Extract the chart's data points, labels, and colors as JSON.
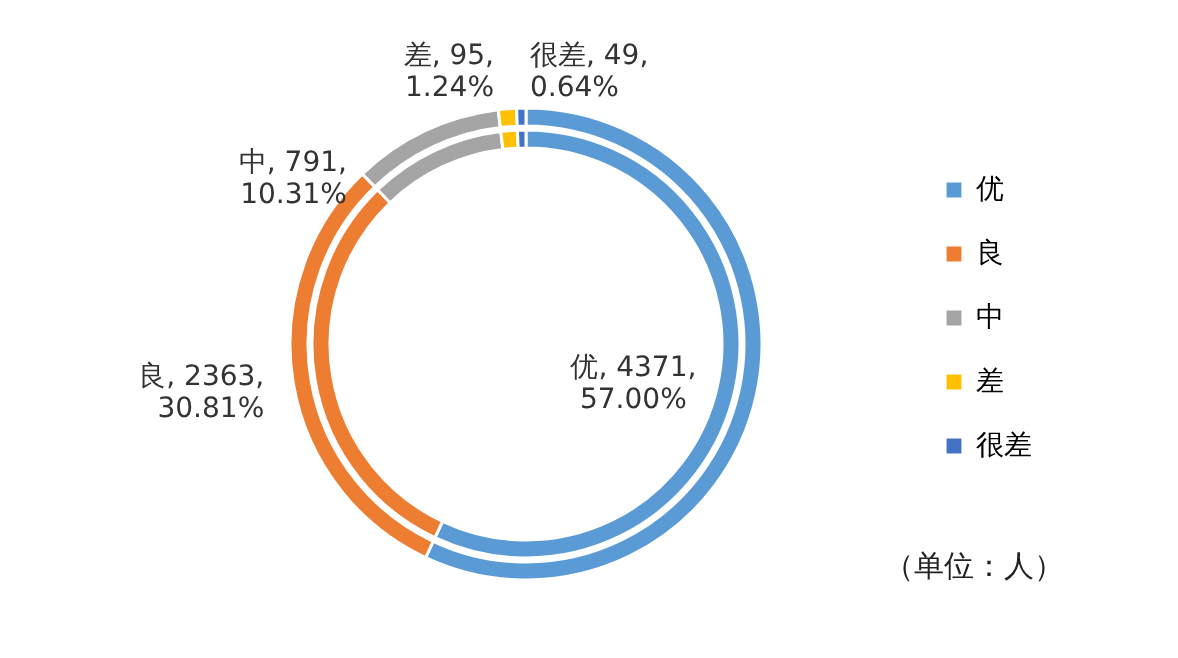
{
  "chart_data": {
    "type": "donut",
    "categories": [
      "优",
      "良",
      "中",
      "差",
      "很差"
    ],
    "colors": [
      "#5b9bd5",
      "#ed7d31",
      "#a5a5a5",
      "#ffc000",
      "#4472c4"
    ],
    "series": [
      {
        "values": [
          4371,
          2363,
          791,
          95,
          49
        ],
        "value_labels": [
          "优, 4371, 57.00%",
          "良, 2363, 30.81%",
          "中, 791, 10.31%",
          "差, 95, 1.24%",
          "很差, 49, 0.64%"
        ]
      },
      {
        "values": [
          57.0,
          30.81,
          10.31,
          1.24,
          0.64
        ]
      }
    ],
    "legend": "right",
    "annotations": [
      "（单位：人）"
    ]
  }
}
